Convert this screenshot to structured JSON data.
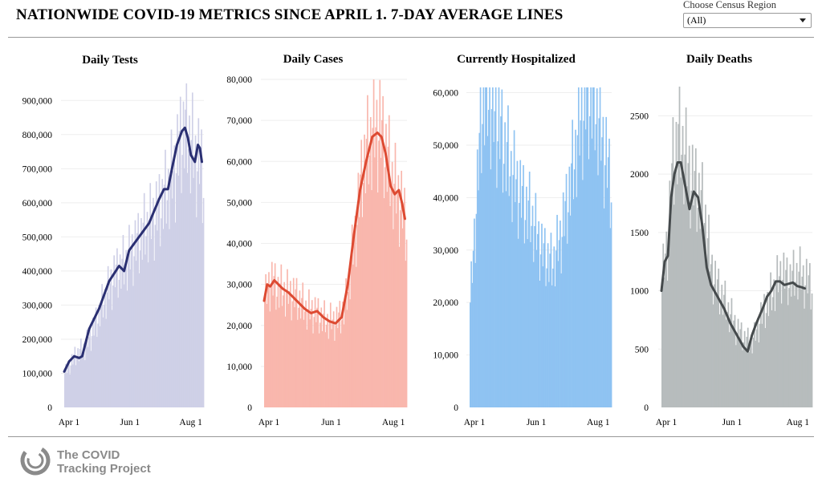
{
  "page": {
    "title": "NATIONWIDE COVID-19 METRICS SINCE APRIL 1. 7-DAY AVERAGE LINES",
    "region_label": "Choose Census Region",
    "region_value": "(All)",
    "footer_line1": "The COVID",
    "footer_line2": "Tracking Project"
  },
  "chart_data": [
    {
      "type": "bar",
      "title": "Daily Tests",
      "bar_color": "#cfd0e7",
      "line_color": "#2a2f72",
      "ylim": [
        0,
        950000
      ],
      "yticks": [
        0,
        100000,
        200000,
        300000,
        400000,
        500000,
        600000,
        700000,
        800000,
        900000
      ],
      "ytick_labels": [
        "0",
        "100,000",
        "200,000",
        "300,000",
        "400,000",
        "500,000",
        "600,000",
        "700,000",
        "800,000",
        "900,000"
      ],
      "x_tick_labels": [
        "Apr 1",
        "Jun 1",
        "Aug 1"
      ],
      "x_tick_days": [
        0,
        61,
        122
      ],
      "bar_keypoints": [
        [
          0,
          100000
        ],
        [
          10,
          150000
        ],
        [
          20,
          175000
        ],
        [
          30,
          240000
        ],
        [
          40,
          320000
        ],
        [
          50,
          390000
        ],
        [
          60,
          420000
        ],
        [
          70,
          470000
        ],
        [
          80,
          520000
        ],
        [
          90,
          560000
        ],
        [
          100,
          620000
        ],
        [
          110,
          700000
        ],
        [
          115,
          780000
        ],
        [
          120,
          820000
        ],
        [
          125,
          780000
        ],
        [
          130,
          720000
        ],
        [
          135,
          720000
        ],
        [
          138,
          660000
        ]
      ],
      "line_keypoints": [
        [
          0,
          105000
        ],
        [
          5,
          135000
        ],
        [
          10,
          150000
        ],
        [
          15,
          145000
        ],
        [
          18,
          150000
        ],
        [
          25,
          230000
        ],
        [
          35,
          290000
        ],
        [
          45,
          370000
        ],
        [
          55,
          415000
        ],
        [
          60,
          400000
        ],
        [
          65,
          460000
        ],
        [
          75,
          500000
        ],
        [
          85,
          540000
        ],
        [
          95,
          610000
        ],
        [
          100,
          640000
        ],
        [
          104,
          640000
        ],
        [
          108,
          700000
        ],
        [
          113,
          770000
        ],
        [
          118,
          810000
        ],
        [
          121,
          820000
        ],
        [
          124,
          790000
        ],
        [
          127,
          740000
        ],
        [
          131,
          720000
        ],
        [
          134,
          770000
        ],
        [
          136,
          760000
        ],
        [
          138,
          720000
        ]
      ]
    },
    {
      "type": "bar",
      "title": "Daily Cases",
      "bar_color": "#f9b7ad",
      "line_color": "#dd4a32",
      "ylim": [
        0,
        80000
      ],
      "yticks": [
        0,
        10000,
        20000,
        30000,
        40000,
        50000,
        60000,
        70000,
        80000
      ],
      "ytick_labels": [
        "0",
        "10,000",
        "20,000",
        "30,000",
        "40,000",
        "50,000",
        "60,000",
        "70,000",
        "80,000"
      ],
      "x_tick_labels": [
        "Apr 1",
        "Jun 1",
        "Aug 1"
      ],
      "x_tick_days": [
        0,
        61,
        122
      ],
      "bar_keypoints": [
        [
          0,
          26000
        ],
        [
          6,
          31000
        ],
        [
          12,
          29000
        ],
        [
          20,
          28000
        ],
        [
          30,
          27000
        ],
        [
          40,
          24000
        ],
        [
          50,
          23000
        ],
        [
          60,
          21000
        ],
        [
          70,
          21000
        ],
        [
          78,
          24000
        ],
        [
          88,
          42000
        ],
        [
          95,
          58000
        ],
        [
          105,
          67000
        ],
        [
          112,
          68000
        ],
        [
          118,
          62000
        ],
        [
          125,
          54000
        ],
        [
          132,
          50000
        ],
        [
          138,
          44000
        ]
      ],
      "line_keypoints": [
        [
          0,
          26000
        ],
        [
          3,
          30000
        ],
        [
          6,
          29500
        ],
        [
          10,
          31000
        ],
        [
          14,
          30000
        ],
        [
          18,
          29000
        ],
        [
          24,
          28000
        ],
        [
          32,
          26000
        ],
        [
          40,
          24000
        ],
        [
          46,
          23000
        ],
        [
          52,
          23500
        ],
        [
          58,
          22000
        ],
        [
          64,
          21000
        ],
        [
          70,
          20500
        ],
        [
          76,
          22000
        ],
        [
          82,
          30000
        ],
        [
          88,
          42000
        ],
        [
          94,
          53000
        ],
        [
          100,
          60000
        ],
        [
          106,
          66000
        ],
        [
          111,
          67000
        ],
        [
          115,
          66000
        ],
        [
          119,
          62000
        ],
        [
          124,
          54000
        ],
        [
          128,
          52000
        ],
        [
          132,
          53000
        ],
        [
          135,
          50000
        ],
        [
          138,
          46000
        ]
      ]
    },
    {
      "type": "bar",
      "title": "Currently Hospitalized",
      "bar_color": "#8fc3f2",
      "line_color": null,
      "ylim": [
        0,
        61000
      ],
      "yticks": [
        0,
        10000,
        20000,
        30000,
        40000,
        50000,
        60000
      ],
      "ytick_labels": [
        "0",
        "10,000",
        "20,000",
        "30,000",
        "40,000",
        "50,000",
        "60,000"
      ],
      "x_tick_labels": [
        "Apr 1",
        "Jun 1",
        "Aug 1"
      ],
      "x_tick_days": [
        0,
        61,
        122
      ],
      "bar_keypoints": [
        [
          0,
          20000
        ],
        [
          4,
          32000
        ],
        [
          8,
          46000
        ],
        [
          12,
          58000
        ],
        [
          16,
          60000
        ],
        [
          22,
          56000
        ],
        [
          30,
          52000
        ],
        [
          40,
          45000
        ],
        [
          50,
          40000
        ],
        [
          60,
          36000
        ],
        [
          70,
          30000
        ],
        [
          80,
          27000
        ],
        [
          88,
          32000
        ],
        [
          96,
          40000
        ],
        [
          104,
          50000
        ],
        [
          112,
          58000
        ],
        [
          118,
          60000
        ],
        [
          124,
          56000
        ],
        [
          130,
          50000
        ],
        [
          138,
          42000
        ]
      ]
    },
    {
      "type": "bar",
      "title": "Daily Deaths",
      "bar_color": "#b7bcbd",
      "line_color": "#454a4c",
      "ylim": [
        0,
        2750
      ],
      "yticks": [
        0,
        500,
        1000,
        1500,
        2000,
        2500
      ],
      "ytick_labels": [
        "0",
        "500",
        "1000",
        "1500",
        "2000",
        "2500"
      ],
      "x_tick_labels": [
        "Apr 1",
        "Jun 1",
        "Aug 1"
      ],
      "x_tick_days": [
        0,
        61,
        122
      ],
      "bar_keypoints": [
        [
          0,
          1100
        ],
        [
          5,
          1400
        ],
        [
          10,
          2100
        ],
        [
          15,
          2300
        ],
        [
          20,
          2200
        ],
        [
          25,
          2000
        ],
        [
          30,
          1900
        ],
        [
          35,
          1800
        ],
        [
          40,
          1600
        ],
        [
          45,
          1200
        ],
        [
          50,
          1050
        ],
        [
          55,
          950
        ],
        [
          60,
          850
        ],
        [
          65,
          750
        ],
        [
          70,
          650
        ],
        [
          75,
          600
        ],
        [
          80,
          550
        ],
        [
          85,
          600
        ],
        [
          90,
          750
        ],
        [
          95,
          850
        ],
        [
          100,
          950
        ],
        [
          105,
          1050
        ],
        [
          110,
          1150
        ],
        [
          115,
          1100
        ],
        [
          120,
          1100
        ],
        [
          125,
          1150
        ],
        [
          130,
          1100
        ],
        [
          138,
          1050
        ]
      ],
      "line_keypoints": [
        [
          0,
          1000
        ],
        [
          3,
          1250
        ],
        [
          6,
          1300
        ],
        [
          9,
          1800
        ],
        [
          12,
          2000
        ],
        [
          15,
          2100
        ],
        [
          18,
          2100
        ],
        [
          22,
          1900
        ],
        [
          26,
          1700
        ],
        [
          30,
          1850
        ],
        [
          34,
          1800
        ],
        [
          38,
          1550
        ],
        [
          42,
          1200
        ],
        [
          46,
          1050
        ],
        [
          52,
          950
        ],
        [
          58,
          850
        ],
        [
          64,
          720
        ],
        [
          70,
          620
        ],
        [
          76,
          520
        ],
        [
          80,
          480
        ],
        [
          84,
          620
        ],
        [
          88,
          720
        ],
        [
          94,
          850
        ],
        [
          98,
          950
        ],
        [
          102,
          1000
        ],
        [
          106,
          1080
        ],
        [
          110,
          1080
        ],
        [
          114,
          1050
        ],
        [
          118,
          1060
        ],
        [
          122,
          1070
        ],
        [
          126,
          1040
        ],
        [
          130,
          1030
        ],
        [
          133,
          1020
        ]
      ]
    }
  ]
}
